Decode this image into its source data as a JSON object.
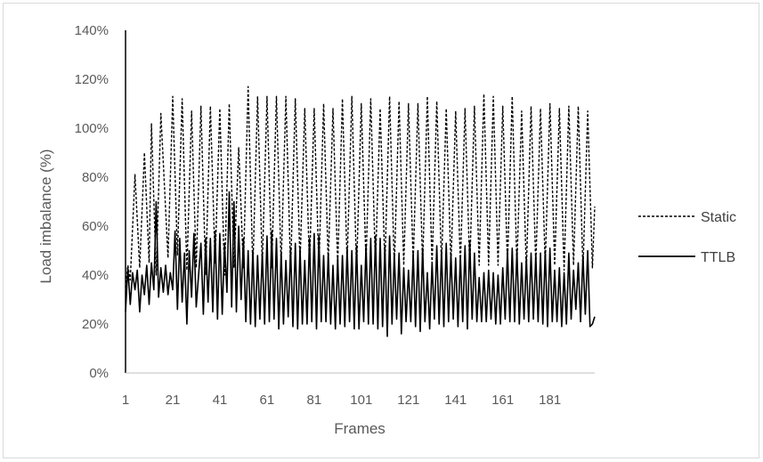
{
  "chart_data": {
    "type": "line",
    "title": "",
    "xlabel": "Frames",
    "ylabel": "Load imbalance (%)",
    "ylim": [
      0,
      140
    ],
    "xlim": [
      1,
      200
    ],
    "yticks": [
      "0%",
      "20%",
      "40%",
      "60%",
      "80%",
      "100%",
      "120%",
      "140%"
    ],
    "xticks": [
      "1",
      "21",
      "41",
      "61",
      "81",
      "101",
      "121",
      "141",
      "161",
      "181"
    ],
    "grid": false,
    "legend_position": "right",
    "series": [
      {
        "name": "Static",
        "style": "dashed",
        "color": "#000000",
        "peaks": [
          [
            2,
            44
          ],
          [
            5,
            81
          ],
          [
            9,
            90
          ],
          [
            12,
            102
          ],
          [
            16,
            106
          ],
          [
            21,
            113
          ],
          [
            25,
            112
          ],
          [
            29,
            107
          ],
          [
            33,
            109
          ],
          [
            37,
            109
          ],
          [
            41,
            108
          ],
          [
            45,
            110
          ],
          [
            49,
            92
          ],
          [
            53,
            117
          ],
          [
            57,
            113
          ],
          [
            61,
            113
          ],
          [
            65,
            113
          ],
          [
            69,
            113
          ],
          [
            73,
            112
          ],
          [
            77,
            108
          ],
          [
            81,
            108
          ],
          [
            85,
            110
          ],
          [
            89,
            108
          ],
          [
            93,
            112
          ],
          [
            97,
            113
          ],
          [
            101,
            110
          ],
          [
            105,
            112
          ],
          [
            109,
            108
          ],
          [
            113,
            113
          ],
          [
            117,
            111
          ],
          [
            121,
            110
          ],
          [
            125,
            110
          ],
          [
            129,
            113
          ],
          [
            133,
            111
          ],
          [
            137,
            108
          ],
          [
            141,
            107
          ],
          [
            145,
            108
          ],
          [
            149,
            109
          ],
          [
            153,
            114
          ],
          [
            157,
            113
          ],
          [
            161,
            109
          ],
          [
            165,
            113
          ],
          [
            169,
            107
          ],
          [
            173,
            109
          ],
          [
            177,
            108
          ],
          [
            181,
            110
          ],
          [
            185,
            108
          ],
          [
            189,
            109
          ],
          [
            193,
            109
          ],
          [
            197,
            107
          ]
        ],
        "troughs": [
          [
            1,
            35
          ],
          [
            3,
            38
          ],
          [
            7,
            43
          ],
          [
            11,
            45
          ],
          [
            14,
            40
          ],
          [
            19,
            47
          ],
          [
            23,
            48
          ],
          [
            27,
            42
          ],
          [
            31,
            43
          ],
          [
            35,
            40
          ],
          [
            39,
            45
          ],
          [
            43,
            40
          ],
          [
            47,
            43
          ],
          [
            51,
            43
          ],
          [
            55,
            42
          ],
          [
            59,
            44
          ],
          [
            63,
            43
          ],
          [
            67,
            44
          ],
          [
            71,
            42
          ],
          [
            75,
            45
          ],
          [
            79,
            44
          ],
          [
            83,
            43
          ],
          [
            87,
            45
          ],
          [
            91,
            44
          ],
          [
            95,
            45
          ],
          [
            99,
            42
          ],
          [
            103,
            45
          ],
          [
            107,
            44
          ],
          [
            111,
            44
          ],
          [
            115,
            43
          ],
          [
            119,
            44
          ],
          [
            123,
            45
          ],
          [
            127,
            44
          ],
          [
            131,
            44
          ],
          [
            135,
            44
          ],
          [
            139,
            44
          ],
          [
            143,
            44
          ],
          [
            147,
            43
          ],
          [
            151,
            44
          ],
          [
            155,
            44
          ],
          [
            159,
            44
          ],
          [
            163,
            44
          ],
          [
            167,
            44
          ],
          [
            171,
            42
          ],
          [
            175,
            44
          ],
          [
            179,
            44
          ],
          [
            183,
            44
          ],
          [
            187,
            42
          ],
          [
            191,
            44
          ],
          [
            195,
            42
          ],
          [
            199,
            43
          ],
          [
            200,
            68
          ]
        ]
      },
      {
        "name": "TTLB",
        "style": "solid",
        "color": "#000000",
        "peaks": [
          [
            2,
            43
          ],
          [
            4,
            41
          ],
          [
            6,
            42
          ],
          [
            8,
            40
          ],
          [
            10,
            44
          ],
          [
            12,
            45
          ],
          [
            14,
            70
          ],
          [
            16,
            43
          ],
          [
            18,
            44
          ],
          [
            20,
            41
          ],
          [
            22,
            58
          ],
          [
            24,
            55
          ],
          [
            26,
            49
          ],
          [
            28,
            50
          ],
          [
            30,
            57
          ],
          [
            33,
            53
          ],
          [
            35,
            55
          ],
          [
            37,
            55
          ],
          [
            39,
            58
          ],
          [
            41,
            57
          ],
          [
            43,
            53
          ],
          [
            45,
            74
          ],
          [
            47,
            70
          ],
          [
            49,
            60
          ],
          [
            51,
            55
          ],
          [
            53,
            50
          ],
          [
            55,
            50
          ],
          [
            57,
            48
          ],
          [
            59,
            49
          ],
          [
            61,
            56
          ],
          [
            63,
            58
          ],
          [
            65,
            55
          ],
          [
            67,
            49
          ],
          [
            69,
            46
          ],
          [
            71,
            51
          ],
          [
            73,
            53
          ],
          [
            75,
            51
          ],
          [
            77,
            46
          ],
          [
            79,
            55
          ],
          [
            81,
            57
          ],
          [
            83,
            56
          ],
          [
            85,
            48
          ],
          [
            87,
            49
          ],
          [
            89,
            44
          ],
          [
            91,
            47
          ],
          [
            93,
            48
          ],
          [
            95,
            51
          ],
          [
            97,
            50
          ],
          [
            99,
            52
          ],
          [
            101,
            44
          ],
          [
            103,
            52
          ],
          [
            105,
            55
          ],
          [
            107,
            56
          ],
          [
            109,
            55
          ],
          [
            111,
            52
          ],
          [
            113,
            56
          ],
          [
            115,
            49
          ],
          [
            117,
            49
          ],
          [
            119,
            43
          ],
          [
            121,
            42
          ],
          [
            123,
            49
          ],
          [
            125,
            50
          ],
          [
            127,
            51
          ],
          [
            129,
            41
          ],
          [
            131,
            45
          ],
          [
            133,
            52
          ],
          [
            135,
            50
          ],
          [
            137,
            53
          ],
          [
            139,
            49
          ],
          [
            141,
            47
          ],
          [
            143,
            48
          ],
          [
            145,
            52
          ],
          [
            147,
            54
          ],
          [
            149,
            49
          ],
          [
            151,
            39
          ],
          [
            153,
            41
          ],
          [
            155,
            42
          ],
          [
            157,
            41
          ],
          [
            159,
            40
          ],
          [
            161,
            43
          ],
          [
            163,
            50
          ],
          [
            165,
            51
          ],
          [
            167,
            50
          ],
          [
            169,
            45
          ],
          [
            171,
            47
          ],
          [
            173,
            49
          ],
          [
            175,
            48
          ],
          [
            177,
            49
          ],
          [
            179,
            50
          ],
          [
            181,
            51
          ],
          [
            183,
            42
          ],
          [
            185,
            43
          ],
          [
            187,
            41
          ],
          [
            189,
            49
          ],
          [
            191,
            42
          ],
          [
            193,
            45
          ],
          [
            195,
            48
          ],
          [
            197,
            50
          ],
          [
            199,
            20
          ],
          [
            200,
            23
          ]
        ],
        "troughs": [
          [
            1,
            25
          ],
          [
            3,
            28
          ],
          [
            5,
            34
          ],
          [
            7,
            25
          ],
          [
            9,
            32
          ],
          [
            11,
            28
          ],
          [
            13,
            34
          ],
          [
            15,
            31
          ],
          [
            17,
            33
          ],
          [
            19,
            32
          ],
          [
            21,
            34
          ],
          [
            23,
            26
          ],
          [
            25,
            29
          ],
          [
            27,
            20
          ],
          [
            29,
            31
          ],
          [
            31,
            27
          ],
          [
            34,
            24
          ],
          [
            36,
            29
          ],
          [
            38,
            25
          ],
          [
            40,
            22
          ],
          [
            42,
            24
          ],
          [
            44,
            33
          ],
          [
            46,
            27
          ],
          [
            48,
            25
          ],
          [
            50,
            30
          ],
          [
            52,
            21
          ],
          [
            54,
            20
          ],
          [
            56,
            19
          ],
          [
            58,
            22
          ],
          [
            60,
            20
          ],
          [
            62,
            21
          ],
          [
            64,
            22
          ],
          [
            66,
            18
          ],
          [
            68,
            20
          ],
          [
            70,
            23
          ],
          [
            72,
            19
          ],
          [
            74,
            18
          ],
          [
            76,
            20
          ],
          [
            78,
            20
          ],
          [
            80,
            21
          ],
          [
            82,
            18
          ],
          [
            84,
            21
          ],
          [
            86,
            21
          ],
          [
            88,
            20
          ],
          [
            90,
            18
          ],
          [
            92,
            20
          ],
          [
            94,
            19
          ],
          [
            96,
            21
          ],
          [
            98,
            18
          ],
          [
            100,
            18
          ],
          [
            102,
            21
          ],
          [
            104,
            20
          ],
          [
            106,
            20
          ],
          [
            108,
            18
          ],
          [
            110,
            19
          ],
          [
            112,
            15
          ],
          [
            114,
            20
          ],
          [
            116,
            22
          ],
          [
            118,
            16
          ],
          [
            120,
            21
          ],
          [
            122,
            21
          ],
          [
            124,
            19
          ],
          [
            126,
            17
          ],
          [
            128,
            21
          ],
          [
            130,
            18
          ],
          [
            132,
            22
          ],
          [
            134,
            20
          ],
          [
            136,
            19
          ],
          [
            138,
            21
          ],
          [
            140,
            22
          ],
          [
            142,
            19
          ],
          [
            144,
            21
          ],
          [
            146,
            18
          ],
          [
            148,
            22
          ],
          [
            150,
            21
          ],
          [
            152,
            21
          ],
          [
            154,
            21
          ],
          [
            156,
            22
          ],
          [
            158,
            20
          ],
          [
            160,
            20
          ],
          [
            162,
            22
          ],
          [
            164,
            21
          ],
          [
            166,
            21
          ],
          [
            168,
            20
          ],
          [
            170,
            22
          ],
          [
            172,
            21
          ],
          [
            174,
            22
          ],
          [
            176,
            21
          ],
          [
            178,
            20
          ],
          [
            180,
            19
          ],
          [
            182,
            21
          ],
          [
            184,
            21
          ],
          [
            186,
            19
          ],
          [
            188,
            20
          ],
          [
            190,
            22
          ],
          [
            192,
            26
          ],
          [
            194,
            21
          ],
          [
            196,
            24
          ],
          [
            198,
            19
          ]
        ]
      }
    ]
  }
}
